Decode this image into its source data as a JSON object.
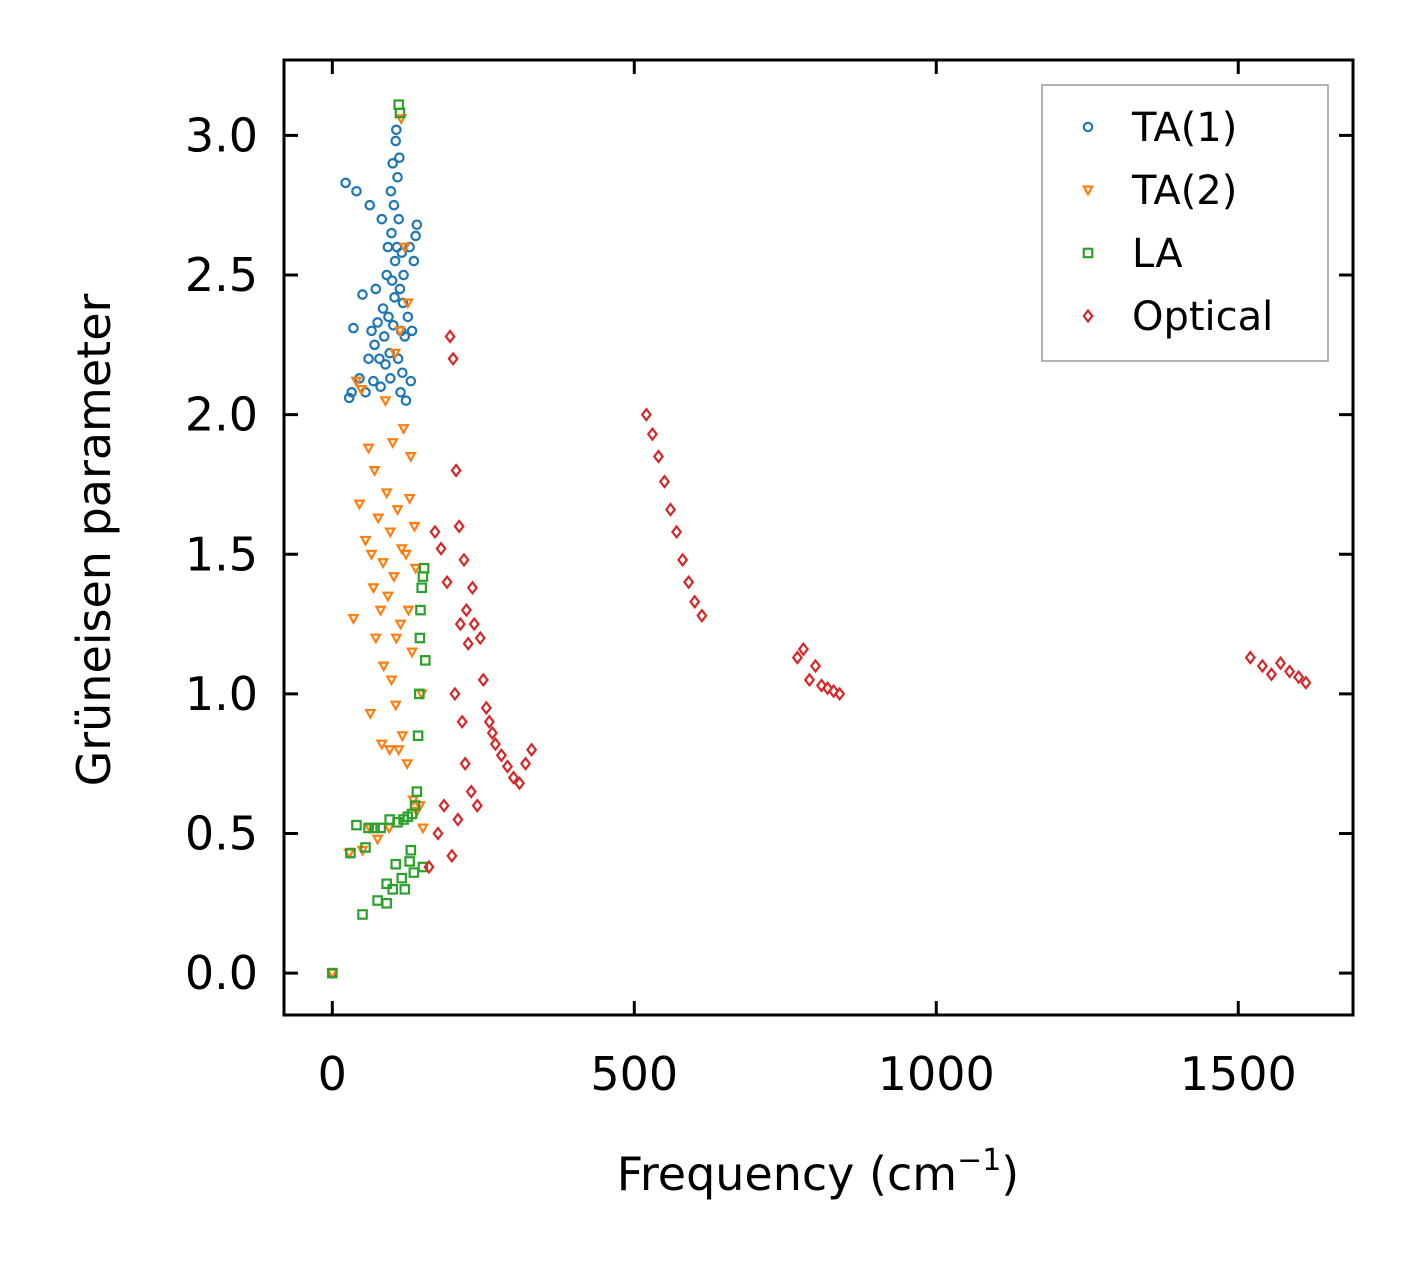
{
  "chart_data": {
    "type": "scatter",
    "xlabel": "Frequency (cm",
    "xlabel_sup": "−1",
    "xlabel_tail": ")",
    "ylabel": "Grüneisen parameter",
    "xlim": [
      -80,
      1690
    ],
    "ylim": [
      -0.15,
      3.27
    ],
    "xticks": [
      0,
      500,
      1000,
      1500
    ],
    "xtick_labels": [
      "0",
      "500",
      "1000",
      "1500"
    ],
    "yticks": [
      0.0,
      0.5,
      1.0,
      1.5,
      2.0,
      2.5,
      3.0
    ],
    "ytick_labels": [
      "0.0",
      "0.5",
      "1.0",
      "1.5",
      "2.0",
      "2.5",
      "3.0"
    ],
    "legend_position": "top-right",
    "series": [
      {
        "name": "TA(1)",
        "marker": "circle",
        "color": "#1f77b4",
        "points": [
          [
            0,
            0.0
          ],
          [
            22,
            2.83
          ],
          [
            28,
            2.06
          ],
          [
            32,
            2.08
          ],
          [
            35,
            2.31
          ],
          [
            40,
            2.8
          ],
          [
            45,
            2.13
          ],
          [
            50,
            2.43
          ],
          [
            55,
            2.08
          ],
          [
            60,
            2.2
          ],
          [
            62,
            2.75
          ],
          [
            65,
            2.3
          ],
          [
            68,
            2.12
          ],
          [
            70,
            2.25
          ],
          [
            72,
            2.45
          ],
          [
            75,
            2.33
          ],
          [
            78,
            2.2
          ],
          [
            80,
            2.1
          ],
          [
            82,
            2.7
          ],
          [
            84,
            2.38
          ],
          [
            86,
            2.28
          ],
          [
            88,
            2.18
          ],
          [
            90,
            2.5
          ],
          [
            92,
            2.6
          ],
          [
            93,
            2.35
          ],
          [
            95,
            2.22
          ],
          [
            96,
            2.13
          ],
          [
            97,
            2.8
          ],
          [
            98,
            2.65
          ],
          [
            99,
            2.48
          ],
          [
            100,
            2.9
          ],
          [
            101,
            2.32
          ],
          [
            102,
            2.75
          ],
          [
            103,
            2.42
          ],
          [
            104,
            2.55
          ],
          [
            105,
            2.98
          ],
          [
            106,
            3.02
          ],
          [
            107,
            2.6
          ],
          [
            108,
            2.85
          ],
          [
            109,
            2.2
          ],
          [
            110,
            2.7
          ],
          [
            111,
            2.92
          ],
          [
            112,
            2.45
          ],
          [
            113,
            2.08
          ],
          [
            114,
            2.3
          ],
          [
            115,
            2.58
          ],
          [
            116,
            2.15
          ],
          [
            117,
            2.4
          ],
          [
            118,
            2.5
          ],
          [
            120,
            2.28
          ],
          [
            122,
            2.05
          ],
          [
            125,
            2.35
          ],
          [
            128,
            2.6
          ],
          [
            130,
            2.12
          ],
          [
            132,
            2.3
          ],
          [
            135,
            2.55
          ],
          [
            138,
            2.64
          ],
          [
            140,
            2.68
          ]
        ]
      },
      {
        "name": "TA(2)",
        "marker": "triangle-down",
        "color": "#ff7f0e",
        "points": [
          [
            0,
            0.0
          ],
          [
            28,
            0.43
          ],
          [
            40,
            2.12
          ],
          [
            35,
            1.27
          ],
          [
            45,
            1.68
          ],
          [
            48,
            2.09
          ],
          [
            50,
            0.44
          ],
          [
            55,
            1.55
          ],
          [
            60,
            1.88
          ],
          [
            62,
            0.52
          ],
          [
            63,
            0.93
          ],
          [
            65,
            1.5
          ],
          [
            68,
            1.38
          ],
          [
            70,
            1.8
          ],
          [
            72,
            1.2
          ],
          [
            75,
            0.48
          ],
          [
            76,
            1.63
          ],
          [
            80,
            1.3
          ],
          [
            82,
            0.82
          ],
          [
            84,
            1.47
          ],
          [
            85,
            1.1
          ],
          [
            88,
            2.05
          ],
          [
            90,
            1.72
          ],
          [
            92,
            1.35
          ],
          [
            94,
            0.52
          ],
          [
            95,
            0.8
          ],
          [
            96,
            1.58
          ],
          [
            98,
            1.05
          ],
          [
            100,
            1.9
          ],
          [
            102,
            1.42
          ],
          [
            104,
            2.22
          ],
          [
            105,
            0.96
          ],
          [
            106,
            1.2
          ],
          [
            108,
            1.66
          ],
          [
            110,
            0.8
          ],
          [
            112,
            2.3
          ],
          [
            113,
            1.25
          ],
          [
            114,
            3.06
          ],
          [
            115,
            1.52
          ],
          [
            116,
            0.85
          ],
          [
            118,
            1.95
          ],
          [
            120,
            2.6
          ],
          [
            122,
            1.5
          ],
          [
            124,
            0.75
          ],
          [
            125,
            2.4
          ],
          [
            126,
            1.3
          ],
          [
            128,
            1.7
          ],
          [
            130,
            1.85
          ],
          [
            132,
            1.15
          ],
          [
            134,
            0.62
          ],
          [
            136,
            1.6
          ],
          [
            138,
            1.45
          ],
          [
            140,
            0.58
          ],
          [
            145,
            0.6
          ],
          [
            148,
            1.0
          ],
          [
            150,
            0.52
          ]
        ]
      },
      {
        "name": "LA",
        "marker": "square",
        "color": "#2ca02c",
        "points": [
          [
            0,
            0.0
          ],
          [
            30,
            0.43
          ],
          [
            40,
            0.53
          ],
          [
            50,
            0.21
          ],
          [
            55,
            0.45
          ],
          [
            60,
            0.52
          ],
          [
            70,
            0.52
          ],
          [
            75,
            0.26
          ],
          [
            80,
            0.52
          ],
          [
            90,
            0.25
          ],
          [
            90,
            0.32
          ],
          [
            95,
            0.55
          ],
          [
            100,
            0.3
          ],
          [
            105,
            0.39
          ],
          [
            108,
            0.54
          ],
          [
            110,
            3.11
          ],
          [
            112,
            3.08
          ],
          [
            115,
            0.34
          ],
          [
            118,
            0.55
          ],
          [
            120,
            0.3
          ],
          [
            125,
            0.56
          ],
          [
            128,
            0.4
          ],
          [
            130,
            0.44
          ],
          [
            132,
            0.57
          ],
          [
            135,
            0.36
          ],
          [
            137,
            0.6
          ],
          [
            140,
            0.65
          ],
          [
            142,
            0.85
          ],
          [
            144,
            1.0
          ],
          [
            145,
            1.2
          ],
          [
            146,
            1.3
          ],
          [
            148,
            1.38
          ],
          [
            150,
            1.42
          ],
          [
            152,
            1.45
          ],
          [
            154,
            1.12
          ],
          [
            150,
            0.38
          ]
        ]
      },
      {
        "name": "Optical",
        "marker": "diamond",
        "color": "#d62728",
        "points": [
          [
            160,
            0.38
          ],
          [
            170,
            1.58
          ],
          [
            175,
            0.5
          ],
          [
            180,
            1.52
          ],
          [
            185,
            0.6
          ],
          [
            190,
            1.4
          ],
          [
            195,
            2.28
          ],
          [
            198,
            0.42
          ],
          [
            200,
            2.2
          ],
          [
            203,
            1.0
          ],
          [
            205,
            1.8
          ],
          [
            208,
            0.55
          ],
          [
            210,
            1.6
          ],
          [
            212,
            1.25
          ],
          [
            215,
            0.9
          ],
          [
            218,
            1.48
          ],
          [
            220,
            0.75
          ],
          [
            222,
            1.3
          ],
          [
            225,
            1.18
          ],
          [
            230,
            0.65
          ],
          [
            232,
            1.38
          ],
          [
            235,
            1.25
          ],
          [
            240,
            0.6
          ],
          [
            245,
            1.2
          ],
          [
            250,
            1.05
          ],
          [
            255,
            0.95
          ],
          [
            260,
            0.9
          ],
          [
            265,
            0.86
          ],
          [
            270,
            0.82
          ],
          [
            280,
            0.78
          ],
          [
            290,
            0.74
          ],
          [
            300,
            0.7
          ],
          [
            310,
            0.68
          ],
          [
            320,
            0.75
          ],
          [
            330,
            0.8
          ],
          [
            520,
            2.0
          ],
          [
            530,
            1.93
          ],
          [
            540,
            1.85
          ],
          [
            550,
            1.76
          ],
          [
            560,
            1.66
          ],
          [
            570,
            1.58
          ],
          [
            580,
            1.48
          ],
          [
            590,
            1.4
          ],
          [
            600,
            1.33
          ],
          [
            612,
            1.28
          ],
          [
            770,
            1.13
          ],
          [
            780,
            1.16
          ],
          [
            790,
            1.05
          ],
          [
            800,
            1.1
          ],
          [
            810,
            1.03
          ],
          [
            820,
            1.02
          ],
          [
            830,
            1.01
          ],
          [
            840,
            1.0
          ],
          [
            1520,
            1.13
          ],
          [
            1540,
            1.1
          ],
          [
            1555,
            1.07
          ],
          [
            1570,
            1.11
          ],
          [
            1585,
            1.08
          ],
          [
            1600,
            1.06
          ],
          [
            1612,
            1.04
          ]
        ]
      }
    ]
  }
}
